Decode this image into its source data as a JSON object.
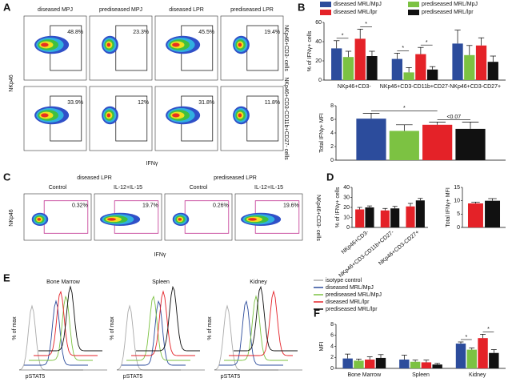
{
  "panel_labels": [
    "A",
    "B",
    "C",
    "D",
    "E",
    "F"
  ],
  "panel_a": {
    "columns": [
      "diseased MPJ",
      "prediseased MPJ",
      "diseased LPR",
      "prediseased LPR"
    ],
    "y_label": "NKp46",
    "x_label": "IFNγ",
    "rows": [
      {
        "label": "NKp46+CD3- cells",
        "percents": [
          "48.8%",
          "23.3%",
          "45.5%",
          "19.4%"
        ]
      },
      {
        "label": "NKp46+CD3-CD11b+CD27- cells",
        "percents": [
          "33.9%",
          "12%",
          "31.8%",
          "11.8%"
        ]
      }
    ]
  },
  "panel_c": {
    "groups": [
      "diseased LPR",
      "prediseased LPR"
    ],
    "conditions": [
      "Control",
      "IL-12+IL-15",
      "Control",
      "IL-12+IL-15"
    ],
    "percents": [
      "0.32%",
      "19.7%",
      "0.26%",
      "19.6%"
    ],
    "row_label": "NKp46+CD3- cells",
    "y_label": "NKp46",
    "x_label": "IFNγ"
  },
  "panel_e": {
    "titles": [
      "Bone Marrow",
      "Spleen",
      "Kidney"
    ],
    "y_label": "% of max",
    "x_label": "pSTAT5",
    "legend": [
      {
        "name": "isotype control",
        "color": "#aaaaaa"
      },
      {
        "name": "diseased MRL/MpJ",
        "color": "#2c4c9c"
      },
      {
        "name": "prediseased MRL/MpJ",
        "color": "#7cc242"
      },
      {
        "name": "diseased MRL/lpr",
        "color": "#e42228"
      },
      {
        "name": "prediseased MRL/lpr",
        "color": "#111111"
      }
    ]
  },
  "chart_data": [
    {
      "type": "bar",
      "y_label": "% of IFNγ+ cells",
      "categories": [
        "NKp46+CD3-",
        "NKp46+CD3-CD11b+CD27-",
        "NKp46+CD3-CD27+"
      ],
      "ylim": [
        0,
        60
      ],
      "yticks": [
        0,
        20,
        40,
        60
      ],
      "series": [
        {
          "name": "diseased MRL/MpJ",
          "color": "#2c4c9c",
          "values": [
            33,
            22,
            38
          ],
          "errors": [
            8,
            6,
            14
          ]
        },
        {
          "name": "prediseased MRL/MpJ",
          "color": "#7cc242",
          "values": [
            24,
            8,
            26
          ],
          "errors": [
            6,
            5,
            10
          ]
        },
        {
          "name": "diseased MRL/lpr",
          "color": "#e42228",
          "values": [
            43,
            27,
            36
          ],
          "errors": [
            10,
            7,
            8
          ]
        },
        {
          "name": "prediseased MRL/lpr",
          "color": "#111111",
          "values": [
            25,
            11,
            19
          ],
          "errors": [
            5,
            3,
            6
          ]
        }
      ],
      "annotations": [
        {
          "text": "*",
          "category": 0,
          "from": 0,
          "to": 1
        },
        {
          "text": "*",
          "category": 0,
          "from": 2,
          "to": 3
        },
        {
          "text": "*",
          "category": 1,
          "from": 0,
          "to": 1
        },
        {
          "text": "*",
          "category": 1,
          "from": 2,
          "to": 3
        }
      ]
    },
    {
      "type": "bar",
      "y_label": "Total IFNγ+ MFI",
      "categories": [
        null
      ],
      "ylim": [
        0,
        8
      ],
      "yticks": [
        0,
        2,
        4,
        6,
        8
      ],
      "series": [
        {
          "color": "#2c4c9c",
          "values": [
            6.1
          ],
          "errors": [
            0.8
          ]
        },
        {
          "color": "#7cc242",
          "values": [
            4.3
          ],
          "errors": [
            0.9
          ]
        },
        {
          "color": "#e42228",
          "values": [
            5.2
          ],
          "errors": [
            0.4
          ]
        },
        {
          "color": "#111111",
          "values": [
            4.6
          ],
          "errors": [
            1.0
          ]
        }
      ],
      "annotations": [
        {
          "text": "*",
          "category": 0,
          "from": 0,
          "to": 2
        },
        {
          "text": "<0.07",
          "category": 0,
          "from": 2,
          "to": 3
        }
      ]
    },
    {
      "type": "bar",
      "y_label": "% of IFNγ+ cells",
      "categories": [
        "NKp46+CD3-",
        "NKp46+CD3-CD11b+CD27-",
        "NKp46+CD3-CD27+"
      ],
      "ylim": [
        0,
        40
      ],
      "yticks": [
        0,
        10,
        20,
        30,
        40
      ],
      "series": [
        {
          "color": "#e42228",
          "values": [
            18,
            17,
            21
          ],
          "errors": [
            2,
            2,
            3
          ]
        },
        {
          "color": "#111111",
          "values": [
            20,
            19,
            27
          ],
          "errors": [
            1.5,
            2,
            2
          ]
        }
      ]
    },
    {
      "type": "bar",
      "y_label": "Total IFNγ+ MFI",
      "categories": [
        null
      ],
      "ylim": [
        0,
        15
      ],
      "yticks": [
        0,
        5,
        10,
        15
      ],
      "series": [
        {
          "color": "#e42228",
          "values": [
            9
          ],
          "errors": [
            0.5
          ]
        },
        {
          "color": "#111111",
          "values": [
            10
          ],
          "errors": [
            0.8
          ]
        }
      ]
    },
    {
      "type": "bar",
      "y_label": "MFI",
      "categories": [
        "Bone Marrow",
        "Spleen",
        "Kidney"
      ],
      "ylim": [
        0,
        8
      ],
      "yticks": [
        0,
        2,
        4,
        6,
        8
      ],
      "series": [
        {
          "color": "#2c4c9c",
          "values": [
            1.8,
            1.6,
            4.5
          ],
          "errors": [
            0.8,
            0.8,
            0.3
          ]
        },
        {
          "color": "#7cc242",
          "values": [
            1.4,
            1.2,
            3.4
          ],
          "errors": [
            0.3,
            0.3,
            0.3
          ]
        },
        {
          "color": "#e42228",
          "values": [
            1.6,
            1.1,
            5.5
          ],
          "errors": [
            0.5,
            0.4,
            0.7
          ]
        },
        {
          "color": "#111111",
          "values": [
            1.9,
            0.7,
            2.8
          ],
          "errors": [
            0.6,
            0.2,
            0.6
          ]
        }
      ],
      "annotations": [
        {
          "text": "*",
          "category": 2,
          "from": 0,
          "to": 1
        },
        {
          "text": "*",
          "category": 2,
          "from": 2,
          "to": 3
        }
      ]
    }
  ]
}
